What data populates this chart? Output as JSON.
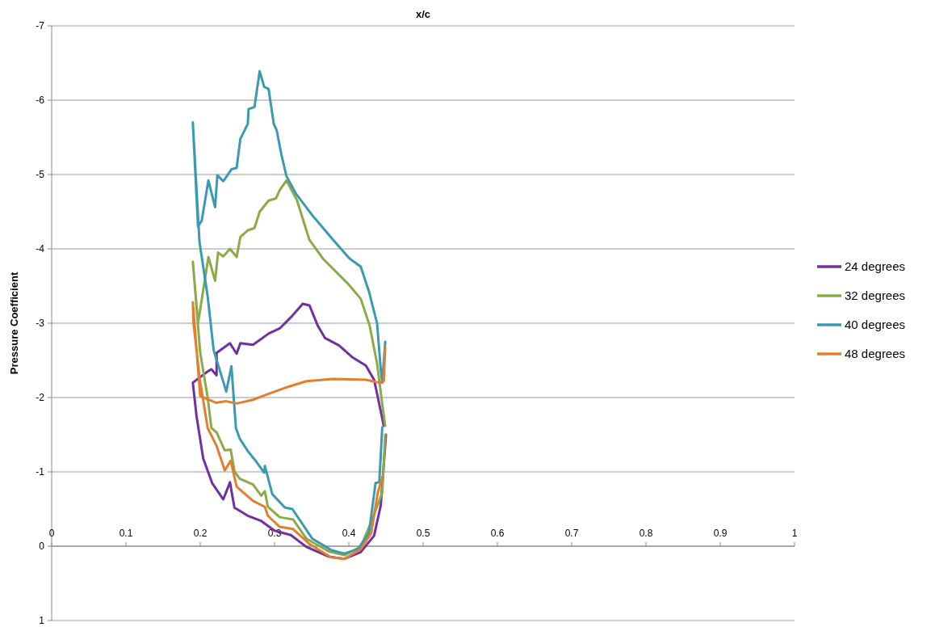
{
  "chart_data": {
    "type": "line",
    "xlabel": "x/c",
    "ylabel": "Pressure Coefficient",
    "xlim": [
      0,
      1
    ],
    "xticks": [
      0,
      0.1,
      0.2,
      0.3,
      0.4,
      0.5,
      0.6,
      0.7,
      0.8,
      0.9,
      1
    ],
    "ylim": [
      1,
      -7
    ],
    "yticks": [
      -7,
      -6,
      -5,
      -4,
      -3,
      -2,
      -1,
      0,
      1
    ],
    "grid": "y",
    "legend": "right",
    "marker": "none",
    "line_style": "solid",
    "series": [
      {
        "name": "24 degrees",
        "color": "#7030a0",
        "x": [
          0.45,
          0.443,
          0.434,
          0.416,
          0.394,
          0.373,
          0.343,
          0.322,
          0.3,
          0.282,
          0.264,
          0.246,
          0.24,
          0.231,
          0.216,
          0.204,
          0.195,
          0.19,
          0.21,
          0.215,
          0.222,
          0.222,
          0.24,
          0.249,
          0.254,
          0.271,
          0.292,
          0.307,
          0.322,
          0.338,
          0.347,
          0.358,
          0.368,
          0.387,
          0.405,
          0.423,
          0.434,
          0.441,
          0.447
        ],
        "values": [
          -1.5,
          -0.55,
          -0.14,
          0.08,
          0.17,
          0.14,
          0.01,
          -0.15,
          -0.21,
          -0.34,
          -0.41,
          -0.52,
          -0.86,
          -0.63,
          -0.85,
          -1.18,
          -1.75,
          -2.2,
          -2.35,
          -2.38,
          -2.3,
          -2.6,
          -2.73,
          -2.59,
          -2.73,
          -2.71,
          -2.86,
          -2.93,
          -3.08,
          -3.26,
          -3.24,
          -2.97,
          -2.8,
          -2.7,
          -2.54,
          -2.43,
          -2.24,
          -1.91,
          -1.62
        ]
      },
      {
        "name": "32 degrees",
        "color": "#8aab48",
        "x": [
          0.449,
          0.445,
          0.43,
          0.416,
          0.394,
          0.373,
          0.343,
          0.325,
          0.307,
          0.291,
          0.287,
          0.282,
          0.271,
          0.253,
          0.246,
          0.241,
          0.233,
          0.222,
          0.215,
          0.21,
          0.2,
          0.19,
          0.197,
          0.211,
          0.22,
          0.224,
          0.231,
          0.24,
          0.249,
          0.254,
          0.264,
          0.273,
          0.28,
          0.292,
          0.302,
          0.307,
          0.316,
          0.33,
          0.347,
          0.365,
          0.398,
          0.416,
          0.428,
          0.438,
          0.445,
          0.449
        ],
        "values": [
          -1.5,
          -0.72,
          -0.32,
          0.01,
          0.12,
          0.07,
          -0.1,
          -0.36,
          -0.39,
          -0.53,
          -0.74,
          -0.68,
          -0.83,
          -0.91,
          -1.01,
          -1.3,
          -1.29,
          -1.53,
          -1.59,
          -2.0,
          -2.6,
          -3.83,
          -3.0,
          -3.89,
          -3.57,
          -3.95,
          -3.9,
          -4.0,
          -3.89,
          -4.16,
          -4.25,
          -4.28,
          -4.5,
          -4.65,
          -4.68,
          -4.79,
          -4.92,
          -4.66,
          -4.12,
          -3.87,
          -3.54,
          -3.33,
          -2.97,
          -2.46,
          -1.91,
          -1.62
        ]
      },
      {
        "name": "40 degrees",
        "color": "#3b9ab2",
        "x": [
          0.445,
          0.441,
          0.436,
          0.427,
          0.412,
          0.394,
          0.376,
          0.351,
          0.324,
          0.314,
          0.297,
          0.287,
          0.286,
          0.276,
          0.264,
          0.253,
          0.248,
          0.242,
          0.235,
          0.218,
          0.21,
          0.199,
          0.19,
          0.197,
          0.202,
          0.211,
          0.22,
          0.223,
          0.231,
          0.242,
          0.249,
          0.254,
          0.264,
          0.265,
          0.273,
          0.28,
          0.286,
          0.292,
          0.299,
          0.303,
          0.309,
          0.316,
          0.329,
          0.351,
          0.379,
          0.401,
          0.416,
          0.427,
          0.438,
          0.443,
          0.445,
          0.449
        ],
        "values": [
          -1.6,
          -0.86,
          -0.85,
          -0.17,
          0.04,
          0.1,
          0.05,
          -0.1,
          -0.5,
          -0.52,
          -0.7,
          -1.08,
          -0.99,
          -1.13,
          -1.28,
          -1.45,
          -1.59,
          -2.42,
          -2.08,
          -2.64,
          -3.36,
          -4.09,
          -5.7,
          -4.3,
          -4.38,
          -4.92,
          -4.56,
          -4.99,
          -4.91,
          -5.07,
          -5.09,
          -5.48,
          -5.68,
          -5.88,
          -5.91,
          -6.39,
          -6.18,
          -6.15,
          -5.68,
          -5.59,
          -5.28,
          -4.98,
          -4.74,
          -4.45,
          -4.12,
          -3.87,
          -3.76,
          -3.43,
          -3.0,
          -2.38,
          -2.2,
          -2.75
        ]
      },
      {
        "name": "48 degrees",
        "color": "#e07f30",
        "x": [
          0.445,
          0.439,
          0.43,
          0.416,
          0.394,
          0.376,
          0.347,
          0.325,
          0.307,
          0.291,
          0.287,
          0.271,
          0.249,
          0.241,
          0.233,
          0.222,
          0.21,
          0.199,
          0.191,
          0.19,
          0.2,
          0.221,
          0.235,
          0.249,
          0.271,
          0.292,
          0.314,
          0.343,
          0.379,
          0.423,
          0.441,
          0.447,
          0.449
        ],
        "values": [
          -0.93,
          -0.72,
          -0.17,
          0.04,
          0.17,
          0.15,
          -0.03,
          -0.23,
          -0.26,
          -0.41,
          -0.53,
          -0.61,
          -0.8,
          -1.15,
          -1.02,
          -1.35,
          -1.59,
          -2.27,
          -3.0,
          -3.28,
          -2.02,
          -1.93,
          -1.95,
          -1.92,
          -1.97,
          -2.05,
          -2.13,
          -2.22,
          -2.25,
          -2.24,
          -2.2,
          -2.22,
          -2.67
        ]
      }
    ]
  }
}
